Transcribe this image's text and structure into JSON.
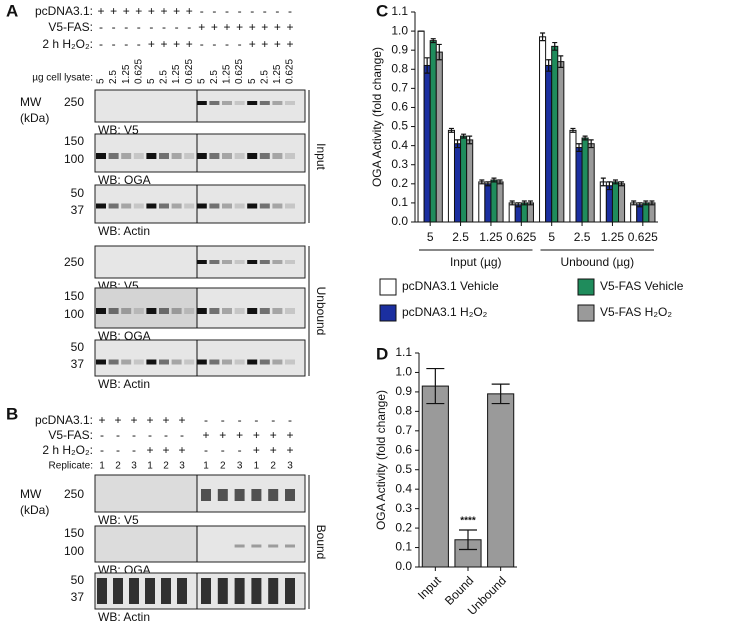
{
  "panel_a": {
    "letter": "A",
    "row_labels": [
      "pcDNA3.1:",
      "V5-FAS:",
      "2 h H₂O₂:"
    ],
    "row_marks": [
      [
        "+",
        "+",
        "+",
        "+",
        "+",
        "+",
        "+",
        "+",
        "-",
        "-",
        "-",
        "-",
        "-",
        "-",
        "-",
        "-"
      ],
      [
        "-",
        "-",
        "-",
        "-",
        "-",
        "-",
        "-",
        "-",
        "+",
        "+",
        "+",
        "+",
        "+",
        "+",
        "+",
        "+"
      ],
      [
        "-",
        "-",
        "-",
        "-",
        "+",
        "+",
        "+",
        "+",
        "-",
        "-",
        "-",
        "-",
        "+",
        "+",
        "+",
        "+"
      ]
    ],
    "lysate_label": "µg cell lysate:",
    "lanes": [
      "5",
      "2.5",
      "1.25",
      "0.625",
      "5",
      "2.5",
      "1.25",
      "0.625",
      "5",
      "2.5",
      "1.25",
      "0.625",
      "5",
      "2.5",
      "1.25",
      "0.625"
    ],
    "mw_label": [
      "MW",
      "(kDa)"
    ],
    "blots": [
      {
        "wb": "WB: V5",
        "markers": [
          "250"
        ]
      },
      {
        "wb": "WB: OGA",
        "markers": [
          "150",
          "100"
        ]
      },
      {
        "wb": "WB: Actin",
        "markers": [
          "50",
          "37"
        ]
      },
      {
        "wb": "WB: V5",
        "markers": [
          "250"
        ]
      },
      {
        "wb": "WB: OGA",
        "markers": [
          "150",
          "100"
        ]
      },
      {
        "wb": "WB: Actin",
        "markers": [
          "50",
          "37"
        ]
      }
    ],
    "groups": [
      "Input",
      "Unbound"
    ]
  },
  "panel_b": {
    "letter": "B",
    "row_labels": [
      "pcDNA3.1:",
      "V5-FAS:",
      "2 h H₂O₂:"
    ],
    "row_marks": [
      [
        "+",
        "+",
        "+",
        "+",
        "+",
        "+",
        "-",
        "-",
        "-",
        "-",
        "-",
        "-"
      ],
      [
        "-",
        "-",
        "-",
        "-",
        "-",
        "-",
        "+",
        "+",
        "+",
        "+",
        "+",
        "+"
      ],
      [
        "-",
        "-",
        "-",
        "+",
        "+",
        "+",
        "-",
        "-",
        "-",
        "+",
        "+",
        "+"
      ]
    ],
    "replicate_label": "Replicate:",
    "replicates": [
      "1",
      "2",
      "3",
      "1",
      "2",
      "3",
      "1",
      "2",
      "3",
      "1",
      "2",
      "3"
    ],
    "mw_label": [
      "MW",
      "(kDa)"
    ],
    "blots": [
      {
        "wb": "WB: V5",
        "markers": [
          "250"
        ]
      },
      {
        "wb": "WB: OGA",
        "markers": [
          "150",
          "100"
        ]
      },
      {
        "wb": "WB: Actin",
        "markers": [
          "50",
          "37"
        ]
      }
    ],
    "group": "Bound"
  },
  "chart_data": [
    {
      "type": "bar",
      "letter": "C",
      "y_label": "OGA Activity (fold change)",
      "categories": [
        "5",
        "2.5",
        "1.25",
        "0.625",
        "5",
        "2.5",
        "1.25",
        "0.625"
      ],
      "group_labels": [
        "Input (µg)",
        "Unbound (µg)"
      ],
      "series": [
        {
          "name": "pcDNA3.1 Vehicle",
          "color": "#ffffff",
          "values": [
            1.0,
            0.48,
            0.21,
            0.1,
            0.97,
            0.48,
            0.21,
            0.1
          ],
          "errors": [
            0.0,
            0.01,
            0.01,
            0.01,
            0.02,
            0.01,
            0.02,
            0.01
          ]
        },
        {
          "name": "pcDNA3.1 H₂O₂",
          "color": "#1b2fa0",
          "values": [
            0.82,
            0.41,
            0.2,
            0.09,
            0.82,
            0.39,
            0.19,
            0.09
          ],
          "errors": [
            0.04,
            0.02,
            0.01,
            0.01,
            0.03,
            0.02,
            0.02,
            0.01
          ]
        },
        {
          "name": "V5-FAS Vehicle",
          "color": "#1f8c5c",
          "values": [
            0.95,
            0.45,
            0.22,
            0.1,
            0.92,
            0.44,
            0.21,
            0.1
          ],
          "errors": [
            0.01,
            0.01,
            0.01,
            0.01,
            0.02,
            0.01,
            0.01,
            0.01
          ]
        },
        {
          "name": "V5-FAS H₂O₂",
          "color": "#9a9a9a",
          "values": [
            0.89,
            0.43,
            0.21,
            0.1,
            0.84,
            0.41,
            0.2,
            0.1
          ],
          "errors": [
            0.04,
            0.02,
            0.01,
            0.01,
            0.03,
            0.02,
            0.01,
            0.01
          ]
        }
      ],
      "ylim": [
        0,
        1.1
      ],
      "yticks": [
        {
          "value": 0,
          "label": "0.0"
        },
        0.1,
        0.2,
        0.3,
        0.4,
        0.5,
        0.6,
        0.7,
        0.8,
        0.9,
        {
          "value": 1,
          "label": "1.0"
        },
        1.1
      ]
    },
    {
      "type": "bar",
      "letter": "D",
      "y_label": "OGA Activity (fold change)",
      "categories": [
        "Input",
        "Bound",
        "Unbound"
      ],
      "values": [
        0.93,
        0.14,
        0.89
      ],
      "errors": [
        0.09,
        0.05,
        0.05
      ],
      "color": "#9a9a9a",
      "annotations": [
        {
          "text": "****",
          "x": "Bound"
        }
      ],
      "ylim": [
        0,
        1.1
      ],
      "yticks": [
        {
          "value": 0,
          "label": "0.0"
        },
        0.1,
        0.2,
        0.3,
        0.4,
        0.5,
        0.6,
        0.7,
        0.8,
        0.9,
        {
          "value": 1,
          "label": "1.0"
        },
        1.1
      ]
    }
  ]
}
